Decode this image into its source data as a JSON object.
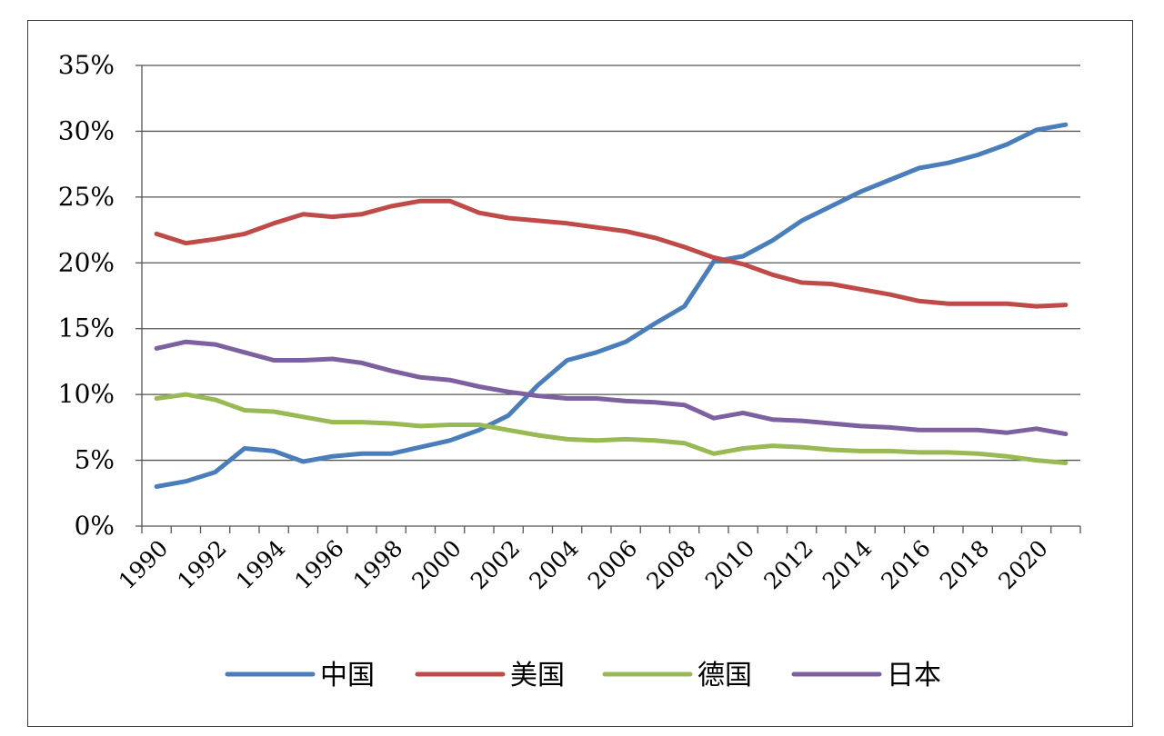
{
  "chart_data": {
    "type": "line",
    "x": [
      1990,
      1991,
      1992,
      1993,
      1994,
      1995,
      1996,
      1997,
      1998,
      1999,
      2000,
      2001,
      2002,
      2003,
      2004,
      2005,
      2006,
      2007,
      2008,
      2009,
      2010,
      2011,
      2012,
      2013,
      2014,
      2015,
      2016,
      2017,
      2018,
      2019,
      2020,
      2021
    ],
    "x_tick_labels": [
      "1990",
      "1992",
      "1994",
      "1996",
      "1998",
      "2000",
      "2002",
      "2004",
      "2006",
      "2008",
      "2010",
      "2012",
      "2014",
      "2016",
      "2018",
      "2020"
    ],
    "y_tick_labels": [
      "0%",
      "5%",
      "10%",
      "15%",
      "20%",
      "25%",
      "30%",
      "35%"
    ],
    "ylim": [
      0,
      35
    ],
    "grid": true,
    "legend_position": "bottom",
    "series": [
      {
        "name": "中国",
        "color": "#4a7ebb",
        "values": [
          3.0,
          3.4,
          4.1,
          5.9,
          5.7,
          4.9,
          5.3,
          5.5,
          5.5,
          6.0,
          6.5,
          7.3,
          8.4,
          10.7,
          12.6,
          13.2,
          14.0,
          15.4,
          16.7,
          20.1,
          20.5,
          21.7,
          23.2,
          24.3,
          25.4,
          26.3,
          27.2,
          27.6,
          28.2,
          29.0,
          30.1,
          30.5
        ]
      },
      {
        "name": "美国",
        "color": "#be4b48",
        "values": [
          22.2,
          21.5,
          21.8,
          22.2,
          23.0,
          23.7,
          23.5,
          23.7,
          24.3,
          24.7,
          24.7,
          23.8,
          23.4,
          23.2,
          23.0,
          22.7,
          22.4,
          21.9,
          21.2,
          20.4,
          19.9,
          19.1,
          18.5,
          18.4,
          18.0,
          17.6,
          17.1,
          16.9,
          16.9,
          16.9,
          16.7,
          16.8
        ]
      },
      {
        "name": "德国",
        "color": "#98b954",
        "values": [
          9.7,
          10.0,
          9.6,
          8.8,
          8.7,
          8.3,
          7.9,
          7.9,
          7.8,
          7.6,
          7.7,
          7.7,
          7.3,
          6.9,
          6.6,
          6.5,
          6.6,
          6.5,
          6.3,
          5.5,
          5.9,
          6.1,
          6.0,
          5.8,
          5.7,
          5.7,
          5.6,
          5.6,
          5.5,
          5.3,
          5.0,
          4.8
        ]
      },
      {
        "name": "日本",
        "color": "#7d60a0",
        "values": [
          13.5,
          14.0,
          13.8,
          13.2,
          12.6,
          12.6,
          12.7,
          12.4,
          11.8,
          11.3,
          11.1,
          10.6,
          10.2,
          9.9,
          9.7,
          9.7,
          9.5,
          9.4,
          9.2,
          8.2,
          8.6,
          8.1,
          8.0,
          7.8,
          7.6,
          7.5,
          7.3,
          7.3,
          7.3,
          7.1,
          7.4,
          7.0
        ]
      }
    ]
  }
}
